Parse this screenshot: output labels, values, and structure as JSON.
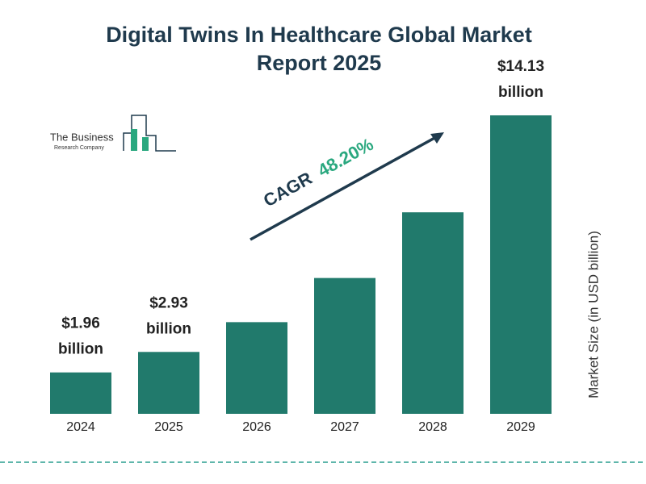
{
  "chart_data": {
    "type": "bar",
    "title": "Digital Twins In Healthcare Global Market Report 2025",
    "categories": [
      "2024",
      "2025",
      "2026",
      "2027",
      "2028",
      "2029"
    ],
    "values": [
      1.96,
      2.93,
      4.34,
      6.43,
      9.54,
      14.13
    ],
    "value_labels": [
      "$1.96 billion",
      "$2.93 billion",
      null,
      null,
      null,
      "$14.13 billion"
    ],
    "color": "#217a6c",
    "y_label": "Market Size (in USD billion)",
    "cagr_label": "CAGR",
    "cagr": "48.20%"
  },
  "logo": {
    "line1": "The Business",
    "line2": "Research Company"
  }
}
